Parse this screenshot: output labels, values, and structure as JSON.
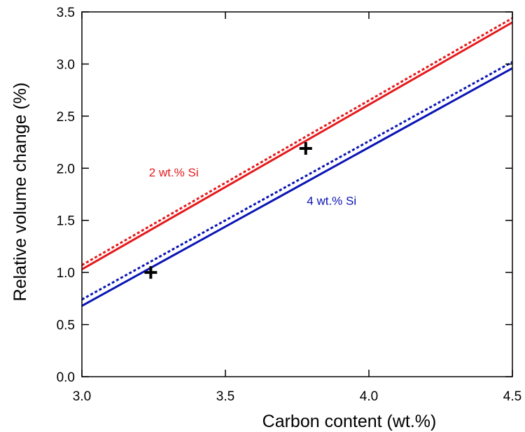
{
  "chart_data": {
    "type": "line",
    "title": "",
    "xlabel": "Carbon content (wt.%)",
    "ylabel": "Relative volume change (%)",
    "xlim": [
      3.0,
      4.5
    ],
    "ylim": [
      0.0,
      3.5
    ],
    "xticks": [
      "3.0",
      "3.5",
      "4.0",
      "4.5"
    ],
    "yticks": [
      "0.0",
      "0.5",
      "1.0",
      "1.5",
      "2.0",
      "2.5",
      "3.0",
      "3.5"
    ],
    "grid": false,
    "legend": "none",
    "series": [
      {
        "style": "solid",
        "color": "#e41a1c",
        "x": [
          3.0,
          4.5
        ],
        "y": [
          1.03,
          3.4
        ]
      },
      {
        "style": "dotted",
        "color": "#e41a1c",
        "x": [
          3.0,
          4.5
        ],
        "y": [
          1.07,
          3.44
        ]
      },
      {
        "style": "solid",
        "color": "#0a14b4",
        "x": [
          3.0,
          4.5
        ],
        "y": [
          0.68,
          2.96
        ]
      },
      {
        "style": "dotted",
        "color": "#0a14b4",
        "x": [
          3.0,
          4.5
        ],
        "y": [
          0.74,
          3.02
        ]
      }
    ],
    "markers": [
      {
        "symbol": "+",
        "x": 3.78,
        "y": 2.19
      },
      {
        "symbol": "+",
        "x": 3.24,
        "y": 1.0
      }
    ],
    "annotations": [
      {
        "text": "2 wt.% Si",
        "x": 3.32,
        "y": 1.92,
        "color": "#e41a1c"
      },
      {
        "text": "4 wt.% Si",
        "x": 3.87,
        "y": 1.65,
        "color": "#0a14b4"
      }
    ]
  }
}
